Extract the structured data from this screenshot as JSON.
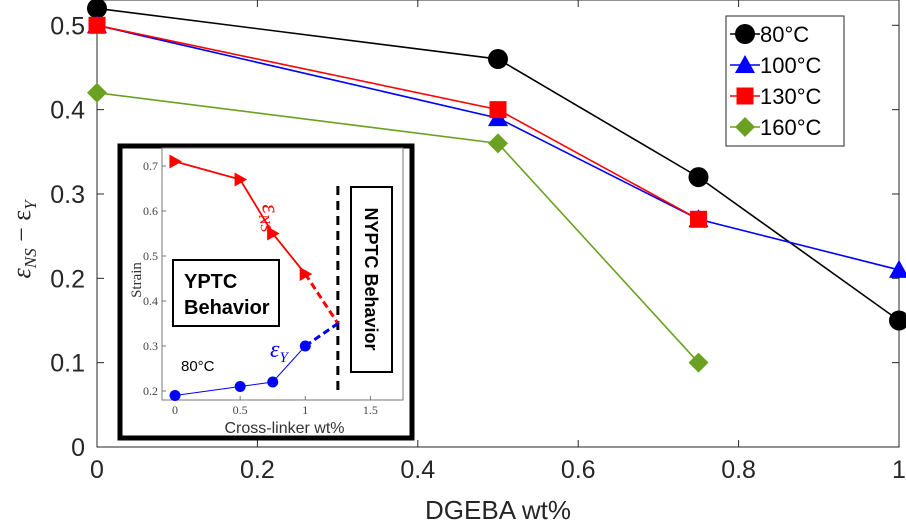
{
  "chart_data": [
    {
      "type": "line",
      "xlabel": "DGEBA wt%",
      "ylabel": "εNS − εY",
      "ylabel_main": "ε",
      "ylabel_sub": "NS",
      "ylabel_minus": " − ε",
      "ylabel_sub2": "Y",
      "xlim": [
        0,
        1
      ],
      "ylim": [
        0,
        0.53
      ],
      "xticks": [
        0,
        0.2,
        0.4,
        0.6,
        0.8,
        1
      ],
      "xtick_labels": [
        "0",
        "0.2",
        "0.4",
        "0.6",
        "0.8",
        "1"
      ],
      "yticks": [
        0,
        0.1,
        0.2,
        0.3,
        0.4,
        0.5
      ],
      "ytick_labels": [
        "0",
        "0.1",
        "0.2",
        "0.3",
        "0.4",
        "0.5"
      ],
      "grid": false,
      "legend_position": "top-right",
      "series": [
        {
          "name": "80°C",
          "color": "#000000",
          "marker": "circle",
          "x": [
            0,
            0.5,
            0.75,
            1
          ],
          "y": [
            0.52,
            0.46,
            0.32,
            0.15
          ]
        },
        {
          "name": "100°C",
          "color": "#0000ff",
          "marker": "triangle",
          "x": [
            0,
            0.5,
            0.75,
            1
          ],
          "y": [
            0.5,
            0.39,
            0.27,
            0.21
          ]
        },
        {
          "name": "130°C",
          "color": "#ff0000",
          "marker": "square",
          "x": [
            0,
            0.5,
            0.75
          ],
          "y": [
            0.5,
            0.4,
            0.27
          ]
        },
        {
          "name": "160°C",
          "color": "#6aa121",
          "marker": "diamond",
          "x": [
            0,
            0.5,
            0.75
          ],
          "y": [
            0.42,
            0.36,
            0.1
          ]
        }
      ]
    },
    {
      "type": "line",
      "xlabel": "Cross-linker  wt%",
      "ylabel": "Strain",
      "xlim": [
        -0.1,
        1.75
      ],
      "ylim": [
        0.18,
        0.74
      ],
      "xticks": [
        0,
        0.5,
        1,
        1.5
      ],
      "xtick_labels": [
        "0",
        "0.5",
        "1",
        "1.5"
      ],
      "yticks": [
        0.2,
        0.3,
        0.4,
        0.5,
        0.6,
        0.7
      ],
      "ytick_labels": [
        "0.2",
        "0.3",
        "0.4",
        "0.5",
        "0.6",
        "0.7"
      ],
      "series": [
        {
          "name": "εNS",
          "label_main": "ε",
          "label_sub": "NS",
          "color": "#ff0000",
          "marker": "triangle-right",
          "x": [
            0,
            0.5,
            0.75,
            1
          ],
          "y": [
            0.71,
            0.67,
            0.55,
            0.46
          ]
        },
        {
          "name": "εY",
          "label_main": "ε",
          "label_sub": "Y",
          "color": "#0000ff",
          "marker": "circle",
          "x": [
            0,
            0.5,
            0.75,
            1
          ],
          "y": [
            0.19,
            0.21,
            0.22,
            0.3
          ]
        }
      ],
      "extrapolations": [
        {
          "color": "#ff0000",
          "x": [
            1,
            1.25
          ],
          "y": [
            0.46,
            0.35
          ]
        },
        {
          "color": "#0000ff",
          "x": [
            1,
            1.25
          ],
          "y": [
            0.3,
            0.35
          ]
        }
      ],
      "boundary_x": 1.25,
      "annotations": {
        "left_region": [
          "YPTC",
          "Behavior"
        ],
        "right_region": "NYPTC Behavior",
        "temperature": "80°C"
      }
    }
  ]
}
